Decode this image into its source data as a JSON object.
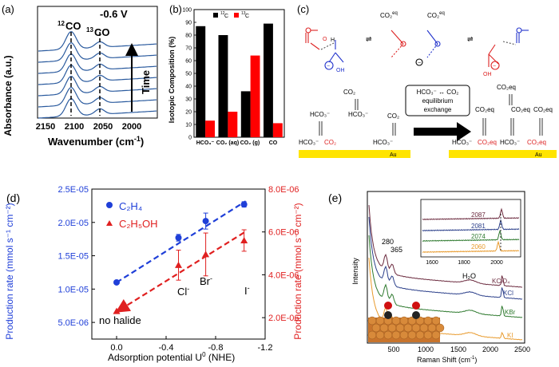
{
  "panels": {
    "a": {
      "label": "(a)",
      "ylabel": "Absorbance (a.u.)",
      "xlabel": "Wavenumber (cm",
      "xlabel_sup": "-1",
      "xlabel_tail": ")",
      "peak1_mass": "12",
      "peak1_label": "CO",
      "peak2_mass": "13",
      "peak2_label": "CO",
      "potential": "-0.6 V",
      "arrow_label": "Time",
      "xticks": [
        "2150",
        "2100",
        "2050",
        "2000"
      ],
      "curve_color": "#2a5a9e"
    },
    "b": {
      "label": "(b)",
      "ylabel": "Isotopic Composition (%)",
      "legend_12_mass": "12",
      "legend_12": "C",
      "legend_13_mass": "13",
      "legend_13": "C",
      "yticks": [
        "0",
        "10",
        "20",
        "30",
        "40",
        "50",
        "60",
        "70",
        "80",
        "90",
        "100"
      ],
      "categories": [
        "HCO₃⁻",
        "CO₂ (aq)",
        "CO₂ (g)",
        "CO"
      ]
    },
    "c": {
      "label": "(c)",
      "eq1": "CO₂",
      "eq1_sup": "eq",
      "eq2": "CO₂",
      "eq2_sup": "eq",
      "box_line1": "HCO₃⁻ ↔ CO₂",
      "box_line2": "equilibrium",
      "box_line3": "exchange",
      "au_left": "Au",
      "au_right": "Au",
      "left_species": [
        "HCO₃⁻",
        "CO₂",
        "HCO₃⁻",
        "CO₂",
        "HCO₃⁻",
        "HCO₃⁻",
        "CO₂"
      ],
      "right_species": [
        "HCO₃⁻",
        "CO₂eq",
        "HCO₃⁻",
        "CO₂eq",
        "CO₂eq",
        "CO₂eq",
        "CO₂eq",
        "CO₂eq"
      ]
    },
    "d": {
      "label": "(d)",
      "ylabel_left": "Production rate (mmol s⁻¹ cm⁻²)",
      "ylabel_right": "Production rate (mmol s⁻¹ cm⁻²)",
      "xlabel": "Adsorption potential U",
      "xlabel_sup": "0",
      "xlabel_tail": " (NHE)",
      "legend_c2h4": "C₂H₄",
      "legend_c2h5oh": "C₂H₅OH",
      "no_halide": "no halide",
      "cl": "Cl",
      "br": "Br",
      "i": "I",
      "ion_sup": "-",
      "xticks": [
        "0.0",
        "-0.4",
        "-0.8",
        "-1.2"
      ],
      "yticks_left": [
        "5.0E-06",
        "1.0E-05",
        "1.5E-05",
        "2.0E-05",
        "2.5E-05"
      ],
      "yticks_right": [
        "2.0E-06",
        "4.0E-06",
        "6.0E-06",
        "8.0E-06"
      ],
      "left_color": "#1f3fd8",
      "right_color": "#e02020"
    },
    "e": {
      "label": "(e)",
      "ylabel": "Intensity",
      "xlabel": "Raman Shift (cm",
      "xlabel_sup": "-1",
      "xlabel_tail": ")",
      "xticks": [
        "500",
        "1000",
        "1500",
        "2000",
        "2500"
      ],
      "peak_280": "280",
      "peak_365": "365",
      "h2o": "H₂O",
      "series": [
        "KClO₄",
        "KCl",
        "KBr",
        "KI"
      ],
      "series_colors": [
        "#6b2a3e",
        "#2b3f8a",
        "#2f7a2f",
        "#e89a2c"
      ],
      "inset_xticks": [
        "1600",
        "1800",
        "2000"
      ],
      "inset_peaks": [
        "2087",
        "2081",
        "2074",
        "2060"
      ]
    }
  },
  "chart_data": [
    {
      "type": "bar",
      "panel": "b",
      "ylabel": "Isotopic Composition (%)",
      "categories": [
        "HCO₃⁻",
        "CO₂ (aq)",
        "CO₂ (g)",
        "CO"
      ],
      "series": [
        {
          "name": "12C",
          "values": [
            87,
            80,
            36,
            89
          ]
        },
        {
          "name": "13C",
          "values": [
            13,
            20,
            64,
            11
          ]
        }
      ],
      "ylim": [
        0,
        100
      ]
    },
    {
      "type": "scatter",
      "panel": "d",
      "xlabel": "Adsorption potential U0 (NHE)",
      "xlim": [
        0.2,
        -1.2
      ],
      "series": [
        {
          "name": "C₂H₄",
          "axis": "left",
          "x": [
            0.0,
            -0.5,
            -0.72,
            -1.03
          ],
          "y": [
            1.1e-05,
            1.77e-05,
            2.02e-05,
            2.27e-05
          ],
          "err": [
            0,
            5e-07,
            1.2e-06,
            4e-07
          ]
        },
        {
          "name": "C₂H₅OH",
          "axis": "right",
          "x": [
            0.0,
            -0.5,
            -0.72,
            -1.03
          ],
          "y": [
            2.3e-06,
            4.45e-06,
            4.95e-06,
            5.6e-06
          ],
          "err": [
            0,
            7e-07,
            1e-06,
            5e-07
          ]
        }
      ],
      "ylim_left": [
        2.5e-06,
        2.5e-05
      ],
      "ylim_right": [
        1e-06,
        8e-06
      ]
    }
  ]
}
